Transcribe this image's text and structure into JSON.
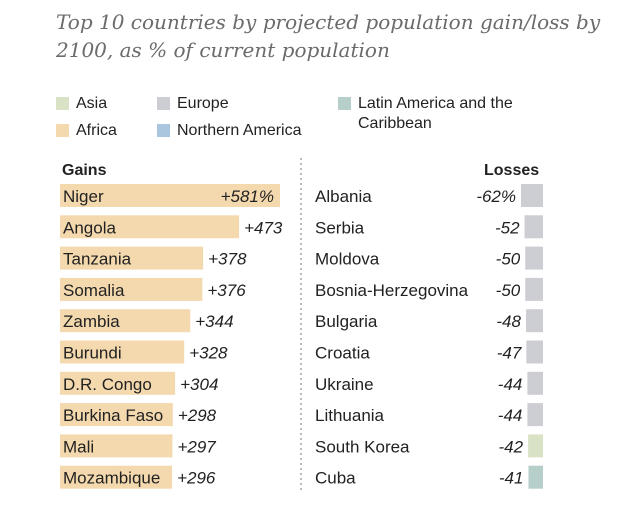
{
  "title": "Top 10 countries by projected population gain/loss by 2100, as % of current population",
  "legend": [
    {
      "label": "Asia",
      "color": "#d9e2c4"
    },
    {
      "label": "Europe",
      "color": "#cdced3"
    },
    {
      "label": "Latin America and the Caribbean",
      "color": "#b6cfcb"
    },
    {
      "label": "Africa",
      "color": "#f4d9ae"
    },
    {
      "label": "Northern America",
      "color": "#a9c6de"
    }
  ],
  "chart_data": {
    "type": "bar",
    "gains_header": "Gains",
    "losses_header": "Losses",
    "gains": [
      {
        "country": "Niger",
        "value": 581,
        "label": "+581%",
        "region": "Africa"
      },
      {
        "country": "Angola",
        "value": 473,
        "label": "+473",
        "region": "Africa"
      },
      {
        "country": "Tanzania",
        "value": 378,
        "label": "+378",
        "region": "Africa"
      },
      {
        "country": "Somalia",
        "value": 376,
        "label": "+376",
        "region": "Africa"
      },
      {
        "country": "Zambia",
        "value": 344,
        "label": "+344",
        "region": "Africa"
      },
      {
        "country": "Burundi",
        "value": 328,
        "label": "+328",
        "region": "Africa"
      },
      {
        "country": "D.R. Congo",
        "value": 304,
        "label": "+304",
        "region": "Africa"
      },
      {
        "country": "Burkina Faso",
        "value": 298,
        "label": "+298",
        "region": "Africa"
      },
      {
        "country": "Mali",
        "value": 297,
        "label": "+297",
        "region": "Africa"
      },
      {
        "country": "Mozambique",
        "value": 296,
        "label": "+296",
        "region": "Africa"
      }
    ],
    "losses": [
      {
        "country": "Albania",
        "value": -62,
        "label": "-62%",
        "region": "Europe"
      },
      {
        "country": "Serbia",
        "value": -52,
        "label": "-52",
        "region": "Europe"
      },
      {
        "country": "Moldova",
        "value": -50,
        "label": "-50",
        "region": "Europe"
      },
      {
        "country": "Bosnia-Herzegovina",
        "value": -50,
        "label": "-50",
        "region": "Europe"
      },
      {
        "country": "Bulgaria",
        "value": -48,
        "label": "-48",
        "region": "Europe"
      },
      {
        "country": "Croatia",
        "value": -47,
        "label": "-47",
        "region": "Europe"
      },
      {
        "country": "Ukraine",
        "value": -44,
        "label": "-44",
        "region": "Europe"
      },
      {
        "country": "Lithuania",
        "value": -44,
        "label": "-44",
        "region": "Europe"
      },
      {
        "country": "South Korea",
        "value": -42,
        "label": "-42",
        "region": "Asia"
      },
      {
        "country": "Cuba",
        "value": -41,
        "label": "-41",
        "region": "Latin America and the Caribbean"
      }
    ]
  }
}
